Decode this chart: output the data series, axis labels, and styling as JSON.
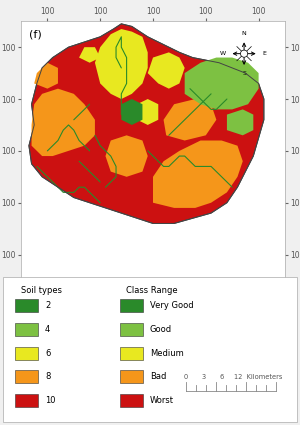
{
  "title_label": "(f)",
  "background_color": "#f0f0f0",
  "map_bg": "#ffffff",
  "c_very_good": "#2a8a2a",
  "c_good": "#7dc142",
  "c_medium": "#e8e820",
  "c_bad": "#f5961a",
  "c_worst": "#cc1111",
  "soil_types_labels": [
    "2",
    "4",
    "6",
    "8",
    "10"
  ],
  "soil_types_colors": [
    "#2a8a2a",
    "#7dc142",
    "#e8e820",
    "#f5961a",
    "#cc1111"
  ],
  "class_range_labels": [
    "Very Good",
    "Good",
    "Medium",
    "Bad",
    "Worst"
  ],
  "class_range_colors": [
    "#2a8a2a",
    "#7dc142",
    "#e8e820",
    "#f5961a",
    "#cc1111"
  ],
  "tick_label": "100",
  "scale_nums": "0   3   6          12  Kilometers",
  "figsize": [
    3.0,
    4.25
  ],
  "dpi": 100
}
